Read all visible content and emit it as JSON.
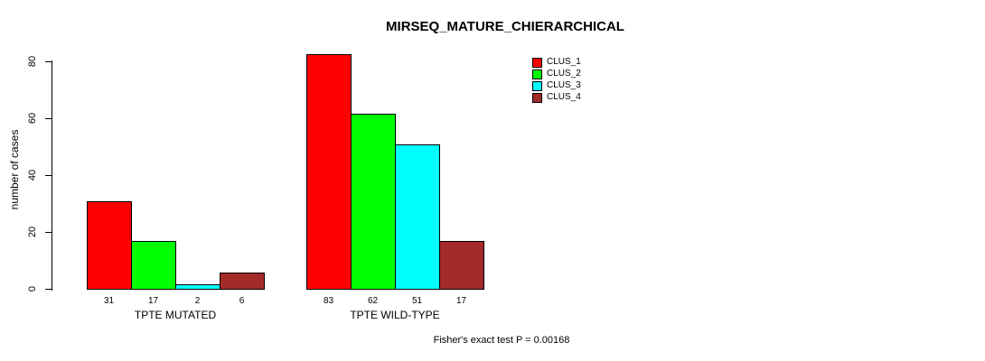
{
  "page": {
    "background": "#FFFFFF"
  },
  "chart_data": {
    "type": "bar",
    "title": "MIRSEQ_MATURE_CHIERARCHICAL",
    "xlabel": "",
    "ylabel": "number of cases",
    "categories": [
      "TPTE MUTATED",
      "TPTE WILD-TYPE"
    ],
    "series": [
      {
        "name": "CLUS_1",
        "color": "#FF0000",
        "values": [
          31,
          83
        ]
      },
      {
        "name": "CLUS_2",
        "color": "#00FF00",
        "values": [
          17,
          62
        ]
      },
      {
        "name": "CLUS_3",
        "color": "#00FFFF",
        "values": [
          2,
          51
        ]
      },
      {
        "name": "CLUS_4",
        "color": "#A52A2A",
        "values": [
          6,
          17
        ]
      }
    ],
    "bar_value_labels": [
      [
        31,
        17,
        2,
        6
      ],
      [
        83,
        62,
        51,
        17
      ]
    ],
    "yticks": [
      0,
      20,
      40,
      60,
      80
    ],
    "ylim": [
      0,
      84
    ],
    "grid": false,
    "legend_position": "top-right",
    "annotation": "Fisher's exact test P = 0.00168"
  }
}
